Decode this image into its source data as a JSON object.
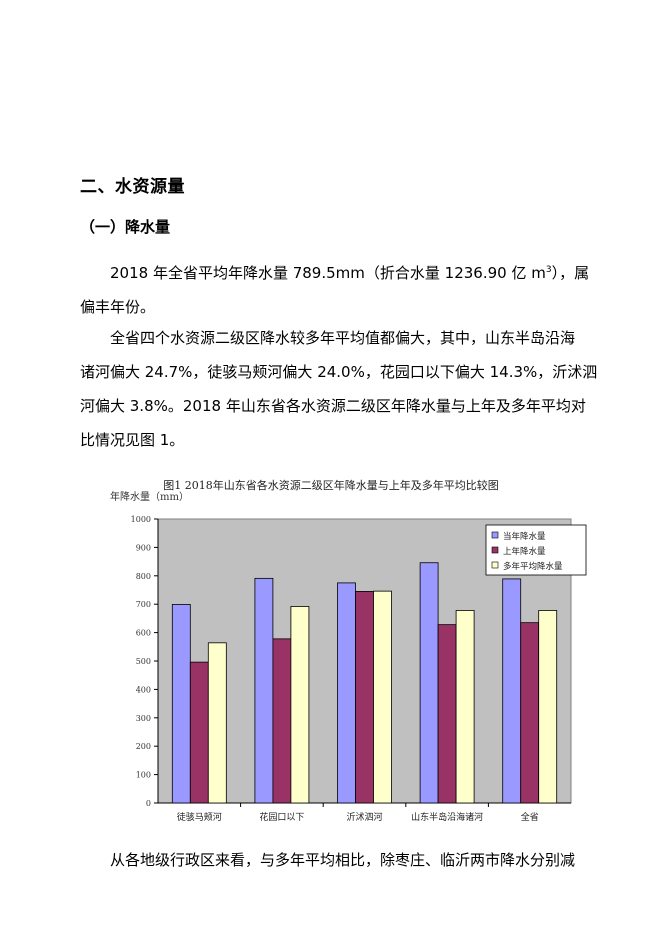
{
  "heading1": "二、水资源量",
  "heading2": "（一）降水量",
  "para1": {
    "line1a": "2018 年全省平均年降水量 789.5mm（折合水量 1236.90 亿 m",
    "line1_sup": "3",
    "line1b": "），属",
    "line2": "偏丰年份。"
  },
  "para2": {
    "line1": "全省四个水资源二级区降水较多年平均值都偏大，其中，山东半岛沿海",
    "line2": "诸河偏大 24.7%，徒骇马颊河偏大 24.0%，花园口以下偏大 14.3%，沂沭泗",
    "line3": "河偏大 3.8%。2018 年山东省各水资源二级区年降水量与上年及多年平均对",
    "line4": "比情况见图 1。"
  },
  "para3": {
    "line1": "从各地级行政区来看，与多年平均相比，除枣庄、临沂两市降水分别减"
  },
  "chart_data": {
    "type": "bar",
    "title": "图1 2018年山东省各水资源二级区年降水量与上年及多年平均比较图",
    "ylabel": "年降水量（mm）",
    "xlabel": "",
    "categories": [
      "徒骇马颊河",
      "花园口以下",
      "沂沭泗河",
      "山东半岛沿海诸河",
      "全省"
    ],
    "series": [
      {
        "name": "当年降水量",
        "color": "#9999ff",
        "values": [
          699,
          791,
          775,
          846,
          789
        ]
      },
      {
        "name": "上年降水量",
        "color": "#993366",
        "values": [
          496,
          578,
          745,
          628,
          635
        ]
      },
      {
        "name": "多年平均降水量",
        "color": "#ffffcc",
        "values": [
          564,
          692,
          746,
          678,
          678
        ]
      }
    ],
    "ylim": [
      0,
      1000
    ],
    "yticks": [
      0,
      100,
      200,
      300,
      400,
      500,
      600,
      700,
      800,
      900,
      1000
    ],
    "grid": false,
    "plot_background": "#c0c0c0",
    "legend_position": "top-right"
  }
}
